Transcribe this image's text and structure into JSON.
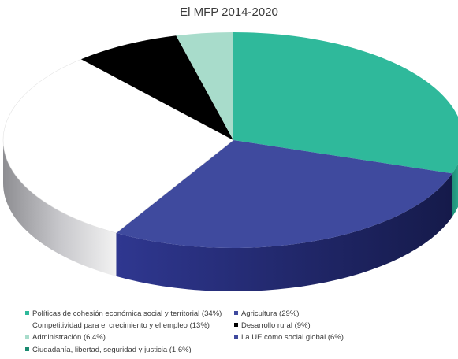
{
  "chart_data": {
    "type": "pie",
    "title": "El MFP 2014-2020",
    "slices": [
      {
        "label": "Políticas de cohesión económica social y territorial (34%)",
        "value": 34,
        "color": "#2fb99b"
      },
      {
        "label": "Agricultura (29%)",
        "value": 29,
        "color": "#3f4a9e"
      },
      {
        "label": "Competitividad para el crecimiento y el empleo (13%)",
        "value": 13,
        "color": "#ffffff"
      },
      {
        "label": "Desarrollo rural (9%)",
        "value": 9,
        "color": "#000000"
      },
      {
        "label": "Administración (6,4%)",
        "value": 6.4,
        "color": "#a8dccb"
      },
      {
        "label": "La UE como social global (6%)",
        "value": 6,
        "color": "#3f4a9e"
      },
      {
        "label": "Ciudadanía, libertad, seguridad y justicia (1,6%)",
        "value": 1.6,
        "color": "#1a8a70"
      }
    ],
    "legend_position": "bottom"
  }
}
